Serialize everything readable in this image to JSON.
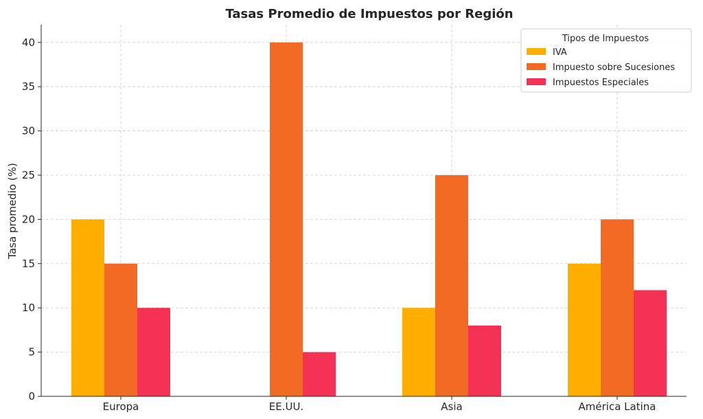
{
  "chart_data": {
    "type": "bar",
    "title": "Tasas Promedio de Impuestos por Región",
    "xlabel": "",
    "ylabel": "Tasa promedio (%)",
    "categories": [
      "Europa",
      "EE.UU.",
      "Asia",
      "América Latina"
    ],
    "ylim": [
      0,
      42
    ],
    "yticks": [
      0,
      5,
      10,
      15,
      20,
      25,
      30,
      35,
      40
    ],
    "grid": true,
    "legend": {
      "title": "Tipos de Impuestos",
      "placement": "top-right"
    },
    "series": [
      {
        "name": "IVA",
        "color": "#FFAE00",
        "values": [
          20,
          0,
          10,
          15
        ]
      },
      {
        "name": "Impuesto sobre Sucesiones",
        "color": "#F26A24",
        "values": [
          15,
          40,
          25,
          20
        ]
      },
      {
        "name": "Impuestos Especiales",
        "color": "#F53255",
        "values": [
          10,
          5,
          8,
          12
        ]
      }
    ]
  }
}
